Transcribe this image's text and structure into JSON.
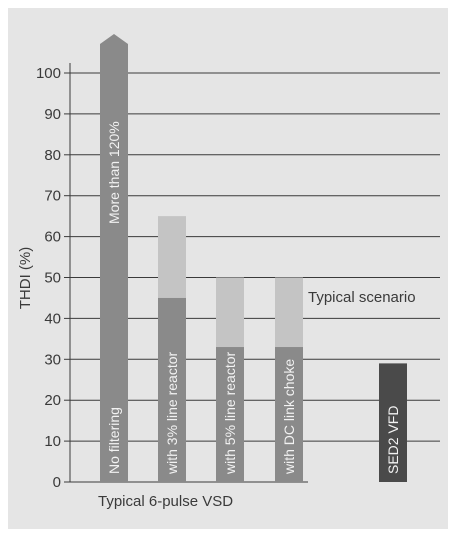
{
  "chart_data": {
    "type": "bar",
    "ylabel": "THDI (%)",
    "xlabel": "Typical 6-pulse VSD",
    "ylim": [
      0,
      105
    ],
    "yticks": [
      0,
      10,
      20,
      30,
      40,
      50,
      60,
      70,
      80,
      90,
      100
    ],
    "grid": true,
    "colors": {
      "dark": "#8a8a8a",
      "light": "#c4c4c4",
      "featured": "#4a4a4a",
      "grid": "#3a3a3a"
    },
    "bars": [
      {
        "label": "No filtering",
        "base": 120,
        "upper": null,
        "note": "More than 120%",
        "truncated": true,
        "style": "dark"
      },
      {
        "label": "with 3% line reactor",
        "base": 45,
        "upper": 65,
        "style": "dark"
      },
      {
        "label": "with 5% line reactor",
        "base": 33,
        "upper": 50,
        "style": "dark"
      },
      {
        "label": "with DC link choke",
        "base": 33,
        "upper": 50,
        "style": "dark"
      },
      {
        "label": "SED2 VFD",
        "base": 29,
        "upper": null,
        "style": "featured"
      }
    ],
    "reference_line": {
      "value": 45,
      "label": "Typical scenario"
    }
  }
}
